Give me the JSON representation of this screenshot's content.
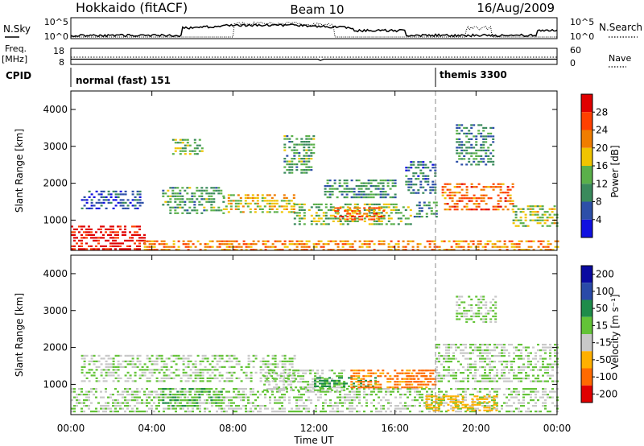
{
  "header": {
    "title_left": "Hokkaido (fitACF)",
    "title_center": "Beam 10",
    "title_right": "16/Aug/2009"
  },
  "top_panels": {
    "nsky_label": "N.Sky",
    "nsky_ticks": [
      "10^5",
      "10^0"
    ],
    "nsearch_label": "N.Search",
    "freq_label_line1": "Freq.",
    "freq_label_line2": "[MHz]",
    "freq_ticks": [
      "18",
      "8"
    ],
    "nave_ticks": [
      "60",
      "0"
    ],
    "nave_label": "Nave",
    "cpid_label": "CPID",
    "cpid_segments": [
      {
        "name": "normal (fast) 151",
        "start_hour": 0
      },
      {
        "name": "themis 3300",
        "start_hour": 18
      }
    ]
  },
  "colors": {
    "power_scale": [
      "#1010e0",
      "#2d4fa8",
      "#3a8a5c",
      "#5ab04a",
      "#f0c400",
      "#f07d00",
      "#ff4000",
      "#e00000"
    ],
    "velocity_scale": [
      "#0a0aa0",
      "#2a4aa8",
      "#1e8c4a",
      "#63c337",
      "#c8c8c8",
      "#ffb000",
      "#ff6a00",
      "#e00000"
    ]
  },
  "chart_data": [
    {
      "type": "heatmap",
      "panel": "power",
      "ylabel": "Slant Range [km]",
      "xlabel": "Time UT",
      "x_ticks": [
        "00:00",
        "04:00",
        "08:00",
        "12:00",
        "16:00",
        "20:00",
        "00:00"
      ],
      "xlim_hours": [
        0,
        24
      ],
      "ylim_km": [
        180,
        4500
      ],
      "y_ticks": [
        "1000",
        "2000",
        "3000",
        "4000"
      ],
      "colorbar_label": "Power [dB]",
      "colorbar_ticks": [
        "4",
        "8",
        "12",
        "16",
        "20",
        "24",
        "28"
      ],
      "colorbar_range": [
        0,
        32
      ],
      "echo_regions": [
        {
          "t0": 0.0,
          "t1": 3.6,
          "r0": 200,
          "r1": 850,
          "value": 30
        },
        {
          "t0": 3.6,
          "t1": 24.0,
          "r0": 200,
          "r1": 450,
          "value": 22
        },
        {
          "t0": 0.5,
          "t1": 3.5,
          "r0": 1300,
          "r1": 1800,
          "value": 6
        },
        {
          "t0": 4.5,
          "t1": 7.5,
          "r0": 1200,
          "r1": 1900,
          "value": 12
        },
        {
          "t0": 7.5,
          "t1": 11.0,
          "r0": 1200,
          "r1": 1700,
          "value": 18
        },
        {
          "t0": 11.0,
          "t1": 16.8,
          "r0": 900,
          "r1": 1450,
          "value": 14
        },
        {
          "t0": 13.0,
          "t1": 15.5,
          "r0": 1000,
          "r1": 1350,
          "value": 24
        },
        {
          "t0": 16.8,
          "t1": 18.0,
          "r0": 1100,
          "r1": 1500,
          "value": 10
        },
        {
          "t0": 18.3,
          "t1": 21.8,
          "r0": 1300,
          "r1": 2000,
          "value": 24
        },
        {
          "t0": 21.8,
          "t1": 24.0,
          "r0": 800,
          "r1": 1400,
          "value": 16
        },
        {
          "t0": 19.0,
          "t1": 20.8,
          "r0": 2500,
          "r1": 3600,
          "value": 10
        },
        {
          "t0": 5.0,
          "t1": 6.5,
          "r0": 2800,
          "r1": 3200,
          "value": 14
        },
        {
          "t0": 10.5,
          "t1": 12.0,
          "r0": 2300,
          "r1": 3300,
          "value": 12
        },
        {
          "t0": 12.5,
          "t1": 16.0,
          "r0": 1600,
          "r1": 2100,
          "value": 10
        },
        {
          "t0": 16.5,
          "t1": 18.0,
          "r0": 1700,
          "r1": 2600,
          "value": 8
        }
      ]
    },
    {
      "type": "heatmap",
      "panel": "velocity",
      "ylabel": "Slant Range [km]",
      "xlabel": "Time UT",
      "x_ticks": [
        "00:00",
        "04:00",
        "08:00",
        "12:00",
        "16:00",
        "20:00",
        "00:00"
      ],
      "xlim_hours": [
        0,
        24
      ],
      "ylim_km": [
        180,
        4500
      ],
      "y_ticks": [
        "1000",
        "2000",
        "3000",
        "4000"
      ],
      "colorbar_label": "Velocity [m s⁻¹]",
      "colorbar_ticks": [
        "200",
        "100",
        "50",
        "15",
        "-15",
        "-50",
        "-100",
        "-200"
      ],
      "echo_regions": [
        {
          "t0": 0.0,
          "t1": 24.0,
          "r0": 250,
          "r1": 900,
          "value": 0
        },
        {
          "t0": 0.5,
          "t1": 11.0,
          "r0": 1100,
          "r1": 1800,
          "value": 0
        },
        {
          "t0": 9.5,
          "t1": 13.5,
          "r0": 800,
          "r1": 1400,
          "value": 0
        },
        {
          "t0": 12.0,
          "t1": 15.0,
          "r0": 900,
          "r1": 1200,
          "value": 40
        },
        {
          "t0": 13.8,
          "t1": 17.6,
          "r0": 900,
          "r1": 1400,
          "value": -80
        },
        {
          "t0": 16.5,
          "t1": 18.0,
          "r0": 1000,
          "r1": 1400,
          "value": -120
        },
        {
          "t0": 18.0,
          "t1": 24.0,
          "r0": 1100,
          "r1": 2100,
          "value": 0
        },
        {
          "t0": 17.5,
          "t1": 21.0,
          "r0": 250,
          "r1": 700,
          "value": -60
        },
        {
          "t0": 19.0,
          "t1": 21.0,
          "r0": 2700,
          "r1": 3400,
          "value": 0
        },
        {
          "t0": 4.5,
          "t1": 7.5,
          "r0": 400,
          "r1": 900,
          "value": 30
        }
      ]
    }
  ]
}
